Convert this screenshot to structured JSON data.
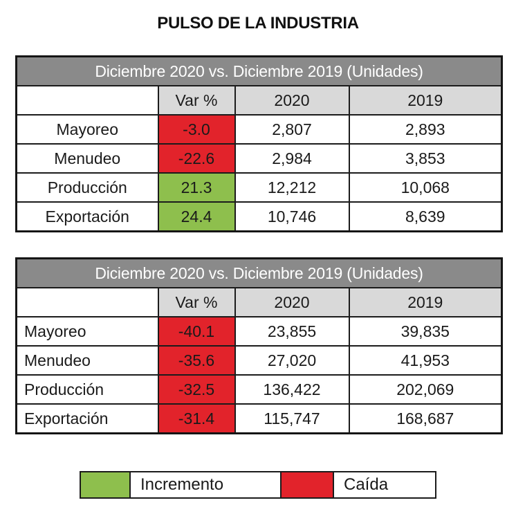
{
  "title": "PULSO DE LA INDUSTRIA",
  "colors": {
    "red": "#E2232B",
    "green": "#8EBF4D",
    "header_bg": "#8A8A8A",
    "subheader_bg": "#D9D9D9"
  },
  "tables": [
    {
      "header": "Diciembre 2020 vs. Diciembre 2019 (Unidades)",
      "columns": [
        "",
        "Var %",
        "2020",
        "2019"
      ],
      "rows": [
        {
          "label": "Mayoreo",
          "var": "-3.0",
          "var_color": "red",
          "v2020": "2,807",
          "v2019": "2,893"
        },
        {
          "label": "Menudeo",
          "var": "-22.6",
          "var_color": "red",
          "v2020": "2,984",
          "v2019": "3,853"
        },
        {
          "label": "Producción",
          "var": "21.3",
          "var_color": "green",
          "v2020": "12,212",
          "v2019": "10,068"
        },
        {
          "label": "Exportación",
          "var": "24.4",
          "var_color": "green",
          "v2020": "10,746",
          "v2019": "8,639"
        }
      ]
    },
    {
      "header": "Diciembre 2020 vs. Diciembre 2019 (Unidades)",
      "columns": [
        "",
        "Var %",
        "2020",
        "2019"
      ],
      "rows": [
        {
          "label": "Mayoreo",
          "var": "-40.1",
          "var_color": "red",
          "v2020": "23,855",
          "v2019": "39,835"
        },
        {
          "label": "Menudeo",
          "var": "-35.6",
          "var_color": "red",
          "v2020": "27,020",
          "v2019": "41,953"
        },
        {
          "label": "Producción",
          "var": "-32.5",
          "var_color": "red",
          "v2020": "136,422",
          "v2019": "202,069"
        },
        {
          "label": "Exportación",
          "var": "-31.4",
          "var_color": "red",
          "v2020": "115,747",
          "v2019": "168,687"
        }
      ]
    }
  ],
  "legend": {
    "increase_label": "Incremento",
    "decrease_label": "Caída"
  },
  "chart_data": [
    {
      "type": "table",
      "title": "Diciembre 2020 vs. Diciembre 2019 (Unidades)",
      "columns": [
        "",
        "Var %",
        "2020",
        "2019"
      ],
      "rows": [
        [
          "Mayoreo",
          -3.0,
          2807,
          2893
        ],
        [
          "Menudeo",
          -22.6,
          2984,
          3853
        ],
        [
          "Producción",
          21.3,
          12212,
          10068
        ],
        [
          "Exportación",
          24.4,
          10746,
          8639
        ]
      ],
      "notes": "negative Var% cells red, positive Var% cells green"
    },
    {
      "type": "table",
      "title": "Diciembre 2020 vs. Diciembre 2019 (Unidades)",
      "columns": [
        "",
        "Var %",
        "2020",
        "2019"
      ],
      "rows": [
        [
          "Mayoreo",
          -40.1,
          23855,
          39835
        ],
        [
          "Menudeo",
          -35.6,
          27020,
          41953
        ],
        [
          "Producción",
          -32.5,
          136422,
          202069
        ],
        [
          "Exportación",
          -31.4,
          115747,
          168687
        ]
      ],
      "notes": "all Var% cells red"
    }
  ]
}
